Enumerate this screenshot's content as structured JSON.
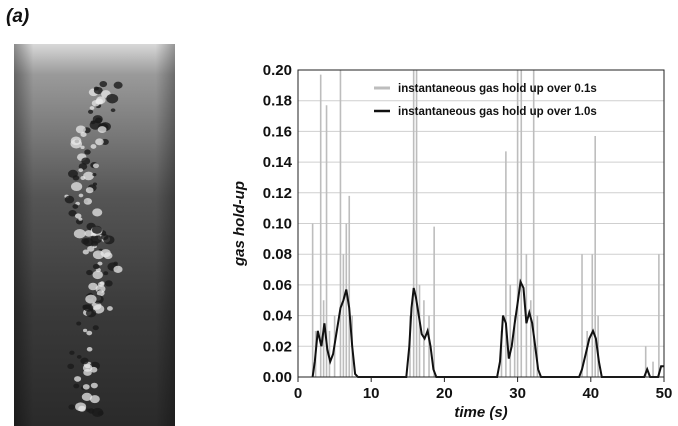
{
  "panel_label": "(a)",
  "photo": {
    "description_icon": "bubble-column-photo"
  },
  "chart_data": {
    "type": "line",
    "xlabel": "time (s)",
    "ylabel": "gas hold-up",
    "xlim": [
      0,
      50
    ],
    "ylim": [
      0,
      0.2
    ],
    "x_ticks": [
      "0",
      "10",
      "20",
      "30",
      "40",
      "50"
    ],
    "y_ticks": [
      "0.00",
      "0.02",
      "0.04",
      "0.06",
      "0.08",
      "0.10",
      "0.12",
      "0.14",
      "0.16",
      "0.18",
      "0.20"
    ],
    "grid": true,
    "legend_position": "top-right",
    "series": [
      {
        "name": "instantaneous gas hold up over 0.1s",
        "color": "#bdbdbd",
        "style": "spikes",
        "points": [
          [
            2.0,
            0.1
          ],
          [
            2.4,
            0.03
          ],
          [
            3.1,
            0.197
          ],
          [
            3.5,
            0.05
          ],
          [
            3.9,
            0.177
          ],
          [
            4.3,
            0.03
          ],
          [
            5.0,
            0.04
          ],
          [
            5.8,
            0.2
          ],
          [
            6.2,
            0.08
          ],
          [
            6.6,
            0.1
          ],
          [
            7.0,
            0.118
          ],
          [
            7.4,
            0.04
          ],
          [
            15.3,
            0.04
          ],
          [
            15.8,
            0.2
          ],
          [
            16.2,
            0.2
          ],
          [
            16.6,
            0.06
          ],
          [
            17.2,
            0.05
          ],
          [
            17.9,
            0.04
          ],
          [
            18.6,
            0.098
          ],
          [
            27.8,
            0.03
          ],
          [
            28.4,
            0.147
          ],
          [
            29.0,
            0.06
          ],
          [
            29.6,
            0.04
          ],
          [
            30.0,
            0.2
          ],
          [
            30.5,
            0.2
          ],
          [
            31.2,
            0.08
          ],
          [
            31.8,
            0.05
          ],
          [
            32.2,
            0.2
          ],
          [
            32.7,
            0.04
          ],
          [
            38.8,
            0.08
          ],
          [
            39.5,
            0.03
          ],
          [
            40.2,
            0.08
          ],
          [
            40.6,
            0.157
          ],
          [
            41.0,
            0.04
          ],
          [
            47.5,
            0.02
          ],
          [
            48.5,
            0.01
          ],
          [
            49.3,
            0.08
          ]
        ]
      },
      {
        "name": "instantaneous gas hold up over 1.0s",
        "color": "#111111",
        "style": "line",
        "points": [
          [
            2,
            0
          ],
          [
            2.3,
            0.01
          ],
          [
            2.7,
            0.03
          ],
          [
            3.2,
            0.02
          ],
          [
            3.6,
            0.035
          ],
          [
            4.0,
            0.018
          ],
          [
            4.4,
            0.01
          ],
          [
            4.8,
            0.015
          ],
          [
            5.3,
            0.03
          ],
          [
            5.8,
            0.045
          ],
          [
            6.2,
            0.05
          ],
          [
            6.6,
            0.057
          ],
          [
            7.0,
            0.045
          ],
          [
            7.4,
            0.02
          ],
          [
            7.8,
            0.002
          ],
          [
            8.2,
            0
          ],
          [
            14.8,
            0
          ],
          [
            15.2,
            0.02
          ],
          [
            15.5,
            0.045
          ],
          [
            15.8,
            0.058
          ],
          [
            16.1,
            0.052
          ],
          [
            16.5,
            0.04
          ],
          [
            16.9,
            0.028
          ],
          [
            17.3,
            0.025
          ],
          [
            17.7,
            0.03
          ],
          [
            18.1,
            0.02
          ],
          [
            18.5,
            0.005
          ],
          [
            18.9,
            0
          ],
          [
            27.2,
            0
          ],
          [
            27.6,
            0.01
          ],
          [
            28.0,
            0.04
          ],
          [
            28.4,
            0.035
          ],
          [
            28.8,
            0.012
          ],
          [
            29.2,
            0.02
          ],
          [
            29.6,
            0.035
          ],
          [
            30.0,
            0.048
          ],
          [
            30.4,
            0.062
          ],
          [
            30.8,
            0.058
          ],
          [
            31.2,
            0.035
          ],
          [
            31.6,
            0.042
          ],
          [
            32.0,
            0.035
          ],
          [
            32.4,
            0.02
          ],
          [
            32.8,
            0.005
          ],
          [
            33.2,
            0
          ],
          [
            38.4,
            0
          ],
          [
            38.8,
            0.005
          ],
          [
            39.3,
            0.015
          ],
          [
            39.8,
            0.025
          ],
          [
            40.3,
            0.03
          ],
          [
            40.7,
            0.025
          ],
          [
            41.1,
            0.01
          ],
          [
            41.5,
            0
          ],
          [
            47.3,
            0
          ],
          [
            47.7,
            0.005
          ],
          [
            48.1,
            0
          ],
          [
            49.2,
            0
          ],
          [
            49.6,
            0.007
          ],
          [
            50,
            0.007
          ]
        ]
      }
    ]
  }
}
